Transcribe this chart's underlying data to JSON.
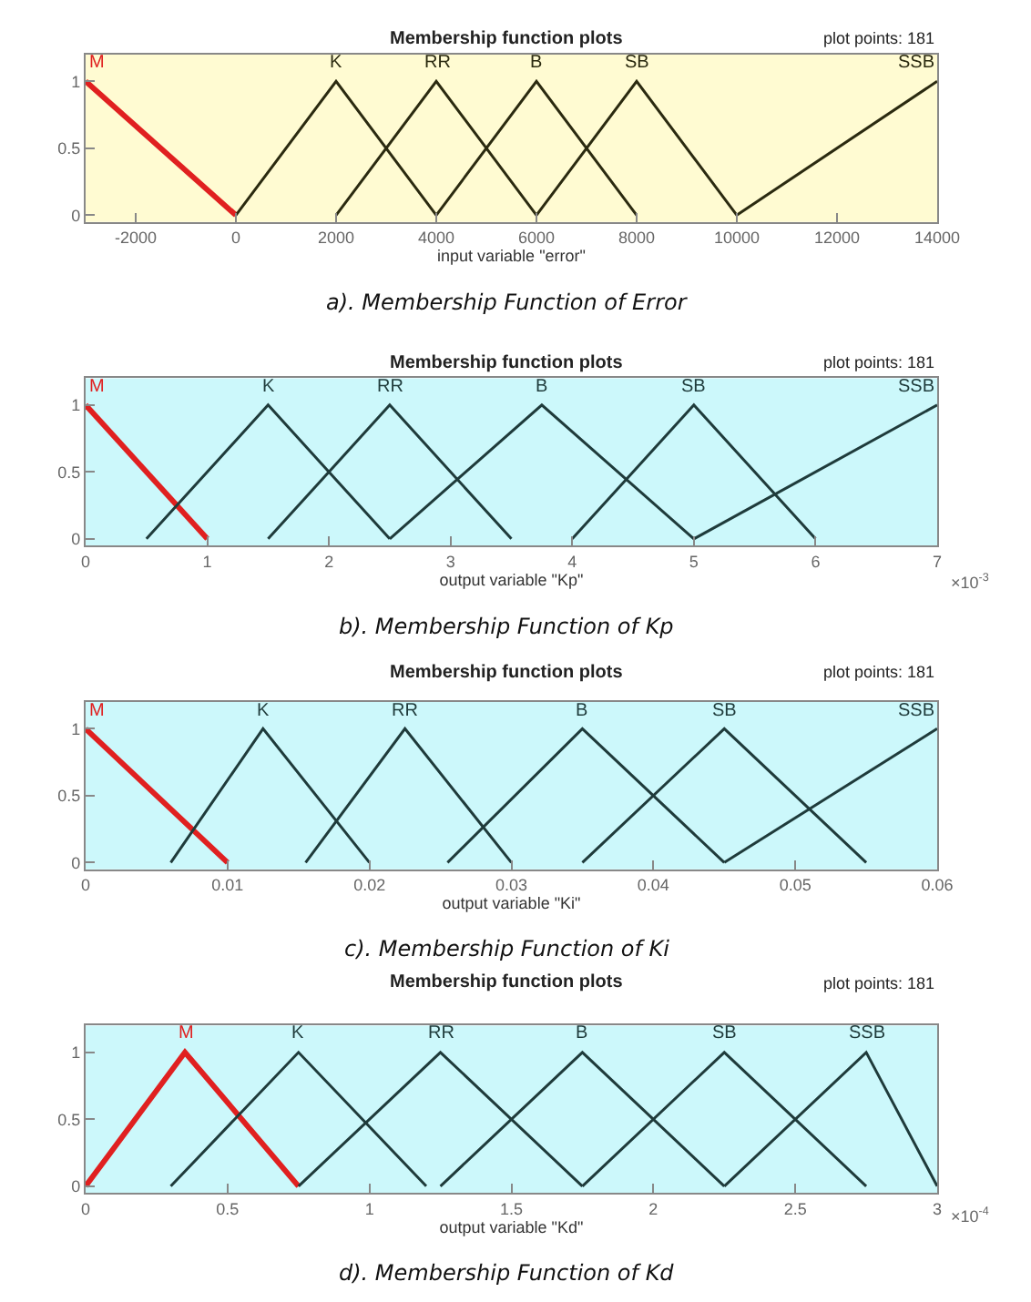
{
  "chart_data": [
    {
      "type": "line",
      "title": "Membership function plots",
      "subtitle": "plot points: 181",
      "xlabel": "input variable \"error\"",
      "annotations": [
        "a). Membership Function of Error"
      ],
      "xlim": [
        -3000,
        14000
      ],
      "xticks": [
        -2000,
        0,
        2000,
        4000,
        6000,
        8000,
        10000,
        12000,
        14000
      ],
      "ylim": [
        -0.05,
        1.2
      ],
      "yticks": [
        0,
        0.5,
        1
      ],
      "grid": false,
      "marker": "none",
      "line_style": "solid",
      "series": [
        {
          "name": "M",
          "color": "#e02020",
          "x": [
            -3000,
            0
          ],
          "values": [
            1,
            0
          ]
        },
        {
          "name": "K",
          "color": "#2b2a10",
          "x": [
            0,
            2000,
            4000
          ],
          "values": [
            0,
            1,
            0
          ]
        },
        {
          "name": "RR",
          "color": "#2b2a10",
          "x": [
            2000,
            4000,
            6000
          ],
          "values": [
            0,
            1,
            0
          ]
        },
        {
          "name": "B",
          "color": "#2b2a10",
          "x": [
            4000,
            6000,
            8000
          ],
          "values": [
            0,
            1,
            0
          ]
        },
        {
          "name": "SB",
          "color": "#2b2a10",
          "x": [
            6000,
            8000,
            10000
          ],
          "values": [
            0,
            1,
            0
          ]
        },
        {
          "name": "SSB",
          "color": "#2b2a10",
          "x": [
            10000,
            14000
          ],
          "values": [
            0,
            1
          ]
        }
      ]
    },
    {
      "type": "line",
      "title": "Membership function plots",
      "subtitle": "plot points: 181",
      "xlabel": "output variable \"Kp\"",
      "annotations": [
        "×10$^{-3}$",
        "b). Membership Function of Kp"
      ],
      "xlim": [
        0,
        7
      ],
      "xticks": [
        0,
        1,
        2,
        3,
        4,
        5,
        6,
        7
      ],
      "ylim": [
        -0.05,
        1.2
      ],
      "yticks": [
        0,
        0.5,
        1
      ],
      "grid": false,
      "marker": "none",
      "line_style": "solid",
      "series": [
        {
          "name": "M",
          "color": "#e02020",
          "x": [
            0,
            1
          ],
          "values": [
            1,
            0
          ]
        },
        {
          "name": "K",
          "color": "#1f3b3b",
          "x": [
            0.5,
            1.5,
            2.5
          ],
          "values": [
            0,
            1,
            0
          ]
        },
        {
          "name": "RR",
          "color": "#1f3b3b",
          "x": [
            1.5,
            2.5,
            3.5
          ],
          "values": [
            0,
            1,
            0
          ]
        },
        {
          "name": "B",
          "color": "#1f3b3b",
          "x": [
            2.5,
            3.75,
            5
          ],
          "values": [
            0,
            1,
            0
          ]
        },
        {
          "name": "SB",
          "color": "#1f3b3b",
          "x": [
            4,
            5,
            6
          ],
          "values": [
            0,
            1,
            0
          ]
        },
        {
          "name": "SSB",
          "color": "#1f3b3b",
          "x": [
            5,
            7
          ],
          "values": [
            0,
            1
          ]
        }
      ]
    },
    {
      "type": "line",
      "title": "Membership function plots",
      "subtitle": "plot points: 181",
      "xlabel": "output variable \"Ki\"",
      "annotations": [
        "c). Membership Function of Ki"
      ],
      "xlim": [
        0,
        0.06
      ],
      "xticks": [
        0,
        0.01,
        0.02,
        0.03,
        0.04,
        0.05,
        0.06
      ],
      "ylim": [
        -0.05,
        1.2
      ],
      "yticks": [
        0,
        0.5,
        1
      ],
      "grid": false,
      "marker": "none",
      "line_style": "solid",
      "series": [
        {
          "name": "M",
          "color": "#e02020",
          "x": [
            0,
            0.01
          ],
          "values": [
            1,
            0
          ]
        },
        {
          "name": "K",
          "color": "#1f3b3b",
          "x": [
            0.006,
            0.0125,
            0.02
          ],
          "values": [
            0,
            1,
            0
          ]
        },
        {
          "name": "RR",
          "color": "#1f3b3b",
          "x": [
            0.0155,
            0.0225,
            0.03
          ],
          "values": [
            0,
            1,
            0
          ]
        },
        {
          "name": "B",
          "color": "#1f3b3b",
          "x": [
            0.0255,
            0.035,
            0.045
          ],
          "values": [
            0,
            1,
            0
          ]
        },
        {
          "name": "SB",
          "color": "#1f3b3b",
          "x": [
            0.035,
            0.045,
            0.055
          ],
          "values": [
            0,
            1,
            0
          ]
        },
        {
          "name": "SSB",
          "color": "#1f3b3b",
          "x": [
            0.045,
            0.06
          ],
          "values": [
            0,
            1
          ]
        }
      ]
    },
    {
      "type": "line",
      "title": "Membership function plots",
      "subtitle": "plot points: 181",
      "xlabel": "output variable \"Kd\"",
      "annotations": [
        "×10$^{-4}$",
        "d). Membership Function of Kd"
      ],
      "xlim": [
        0,
        3
      ],
      "xticks": [
        0,
        0.5,
        1,
        1.5,
        2,
        2.5,
        3
      ],
      "ylim": [
        -0.05,
        1.2
      ],
      "yticks": [
        0,
        0.5,
        1
      ],
      "grid": false,
      "marker": "none",
      "line_style": "solid",
      "series": [
        {
          "name": "M",
          "color": "#e02020",
          "x": [
            0,
            0.35,
            0.75
          ],
          "values": [
            0,
            1,
            0
          ]
        },
        {
          "name": "K",
          "color": "#1f3b3b",
          "x": [
            0.3,
            0.75,
            1.2
          ],
          "values": [
            0,
            1,
            0
          ]
        },
        {
          "name": "RR",
          "color": "#1f3b3b",
          "x": [
            0.75,
            1.25,
            1.75
          ],
          "values": [
            0,
            1,
            0
          ]
        },
        {
          "name": "B",
          "color": "#1f3b3b",
          "x": [
            1.25,
            1.75,
            2.25
          ],
          "values": [
            0,
            1,
            0
          ]
        },
        {
          "name": "SB",
          "color": "#1f3b3b",
          "x": [
            1.75,
            2.25,
            2.75
          ],
          "values": [
            0,
            1,
            0
          ]
        },
        {
          "name": "SSB",
          "color": "#1f3b3b",
          "x": [
            2.25,
            2.75,
            3
          ],
          "values": [
            0,
            1,
            0
          ]
        }
      ]
    }
  ]
}
